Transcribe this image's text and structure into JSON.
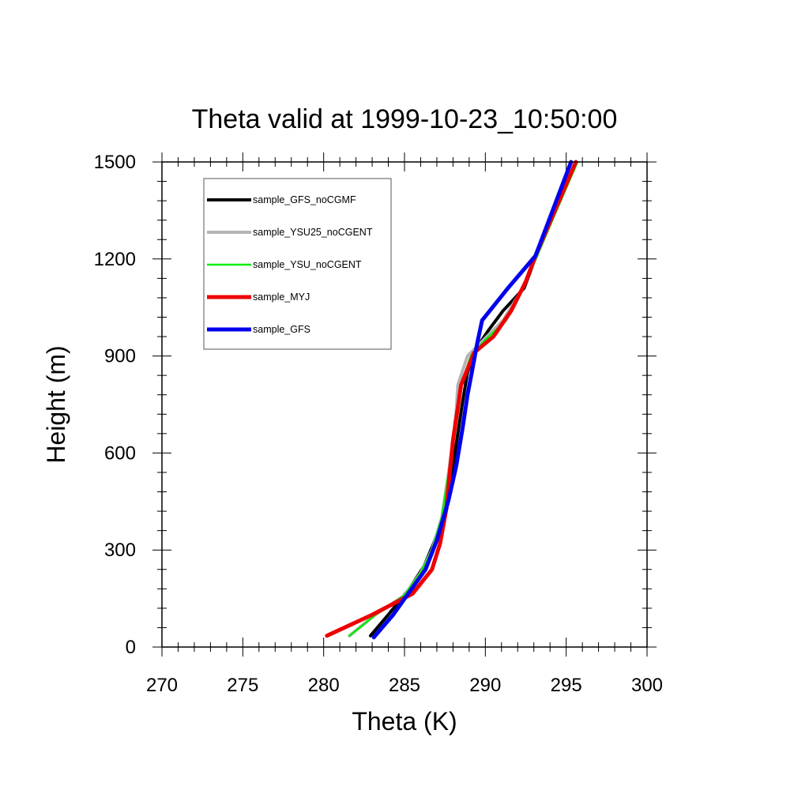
{
  "chart_data": {
    "type": "line",
    "title": "Theta valid at 1999-10-23_10:50:00",
    "xlabel": "Theta (K)",
    "ylabel": "Height (m)",
    "xlim": [
      270,
      300
    ],
    "ylim": [
      0,
      1500
    ],
    "xticks": [
      "270",
      "275",
      "280",
      "285",
      "290",
      "295",
      "300"
    ],
    "yticks": [
      "0",
      "300",
      "600",
      "900",
      "1200",
      "1500"
    ],
    "legend_position": "top-left",
    "grid": false,
    "series": [
      {
        "name": "sample_GFS_noCGMF",
        "color": "#000000",
        "points": [
          [
            282.9,
            35
          ],
          [
            284.0,
            100
          ],
          [
            285.3,
            180
          ],
          [
            286.2,
            250
          ],
          [
            286.8,
            320
          ],
          [
            287.3,
            390
          ],
          [
            287.7,
            460
          ],
          [
            288.0,
            560
          ],
          [
            288.3,
            660
          ],
          [
            288.6,
            760
          ],
          [
            288.9,
            850
          ],
          [
            289.4,
            920
          ],
          [
            290.2,
            980
          ],
          [
            291.1,
            1040
          ],
          [
            292.4,
            1110
          ],
          [
            293.3,
            1230
          ],
          [
            295.3,
            1500
          ]
        ]
      },
      {
        "name": "sample_YSU25_noCGENT",
        "color": "#b4b4b4",
        "points": [
          [
            281.6,
            35
          ],
          [
            283.2,
            100
          ],
          [
            285.0,
            160
          ],
          [
            286.0,
            230
          ],
          [
            286.7,
            300
          ],
          [
            287.3,
            400
          ],
          [
            287.7,
            530
          ],
          [
            288.0,
            640
          ],
          [
            288.2,
            730
          ],
          [
            288.3,
            810
          ],
          [
            288.9,
            900
          ],
          [
            289.9,
            950
          ],
          [
            291.1,
            1010
          ],
          [
            292.2,
            1100
          ],
          [
            293.1,
            1200
          ],
          [
            295.6,
            1500
          ]
        ]
      },
      {
        "name": "sample_YSU_noCGENT",
        "color": "#00ee00",
        "points": [
          [
            281.6,
            35
          ],
          [
            283.2,
            100
          ],
          [
            285.0,
            160
          ],
          [
            286.0,
            230
          ],
          [
            286.7,
            300
          ],
          [
            287.3,
            400
          ],
          [
            287.7,
            530
          ],
          [
            288.0,
            640
          ],
          [
            288.2,
            730
          ],
          [
            288.5,
            810
          ],
          [
            289.1,
            900
          ],
          [
            290.0,
            950
          ],
          [
            291.3,
            1010
          ],
          [
            292.3,
            1110
          ],
          [
            293.2,
            1210
          ],
          [
            295.7,
            1500
          ]
        ]
      },
      {
        "name": "sample_MYJ",
        "color": "#ee0000",
        "points": [
          [
            280.2,
            35
          ],
          [
            283.0,
            100
          ],
          [
            285.5,
            165
          ],
          [
            286.7,
            240
          ],
          [
            287.2,
            320
          ],
          [
            287.6,
            430
          ],
          [
            287.8,
            540
          ],
          [
            288.0,
            640
          ],
          [
            288.3,
            740
          ],
          [
            288.5,
            810
          ],
          [
            289.3,
            910
          ],
          [
            290.5,
            960
          ],
          [
            291.6,
            1040
          ],
          [
            292.5,
            1130
          ],
          [
            293.1,
            1210
          ],
          [
            295.6,
            1500
          ]
        ]
      },
      {
        "name": "sample_GFS",
        "color": "#0000ee",
        "points": [
          [
            283.1,
            30
          ],
          [
            284.3,
            100
          ],
          [
            285.3,
            170
          ],
          [
            286.3,
            240
          ],
          [
            287.0,
            330
          ],
          [
            287.7,
            450
          ],
          [
            288.2,
            560
          ],
          [
            288.6,
            680
          ],
          [
            288.9,
            780
          ],
          [
            289.2,
            860
          ],
          [
            289.5,
            940
          ],
          [
            289.8,
            1010
          ],
          [
            291.4,
            1110
          ],
          [
            293.1,
            1210
          ],
          [
            295.3,
            1500
          ]
        ]
      }
    ]
  }
}
